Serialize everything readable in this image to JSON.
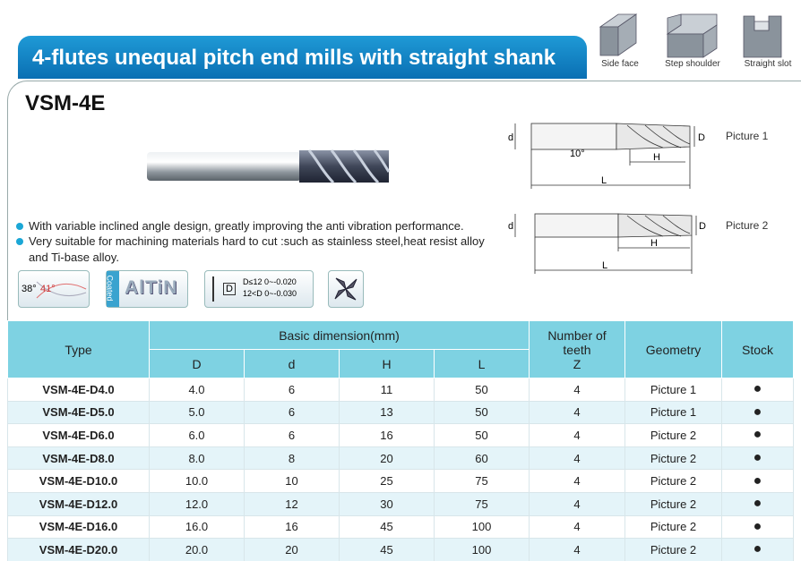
{
  "header": {
    "title": "4-flutes unequal pitch end mills with straight shank"
  },
  "operations": [
    "Side face",
    "Step shoulder",
    "Straight slot"
  ],
  "product": {
    "model": "VSM-4E",
    "features": [
      "With variable inclined angle design, greatly improving the anti vibration performance.",
      "Very suitable for machining materials hard to cut :such as stainless steel,heat resist alloy and Ti-base alloy."
    ]
  },
  "badges": {
    "helix": [
      "38°",
      "41°"
    ],
    "coated": "Coated",
    "coating": "AlTiN",
    "tolerance": {
      "symbol": "D",
      "lines": [
        "D≤12  0~-0.020",
        "12<D  0~-0.030"
      ]
    }
  },
  "diagrams": [
    {
      "label": "Picture 1",
      "dims": [
        "d",
        "D",
        "H",
        "L",
        "10°"
      ]
    },
    {
      "label": "Picture 2",
      "dims": [
        "d",
        "D",
        "H",
        "L"
      ]
    }
  ],
  "table": {
    "headers": {
      "type": "Type",
      "group": "Basic dimension(mm)",
      "dims": [
        "D",
        "d",
        "H",
        "L"
      ],
      "teeth": [
        "Number of",
        "teeth",
        "Z"
      ],
      "geometry": "Geometry",
      "stock": "Stock"
    },
    "rows": [
      [
        "VSM-4E-D4.0",
        "4.0",
        "6",
        "11",
        "50",
        "4",
        "Picture 1",
        "●"
      ],
      [
        "VSM-4E-D5.0",
        "5.0",
        "6",
        "13",
        "50",
        "4",
        "Picture 1",
        "●"
      ],
      [
        "VSM-4E-D6.0",
        "6.0",
        "6",
        "16",
        "50",
        "4",
        "Picture 2",
        "●"
      ],
      [
        "VSM-4E-D8.0",
        "8.0",
        "8",
        "20",
        "60",
        "4",
        "Picture 2",
        "●"
      ],
      [
        "VSM-4E-D10.0",
        "10.0",
        "10",
        "25",
        "75",
        "4",
        "Picture 2",
        "●"
      ],
      [
        "VSM-4E-D12.0",
        "12.0",
        "12",
        "30",
        "75",
        "4",
        "Picture 2",
        "●"
      ],
      [
        "VSM-4E-D16.0",
        "16.0",
        "16",
        "45",
        "100",
        "4",
        "Picture 2",
        "●"
      ],
      [
        "VSM-4E-D20.0",
        "20.0",
        "20",
        "45",
        "100",
        "4",
        "Picture 2",
        "●"
      ]
    ]
  }
}
